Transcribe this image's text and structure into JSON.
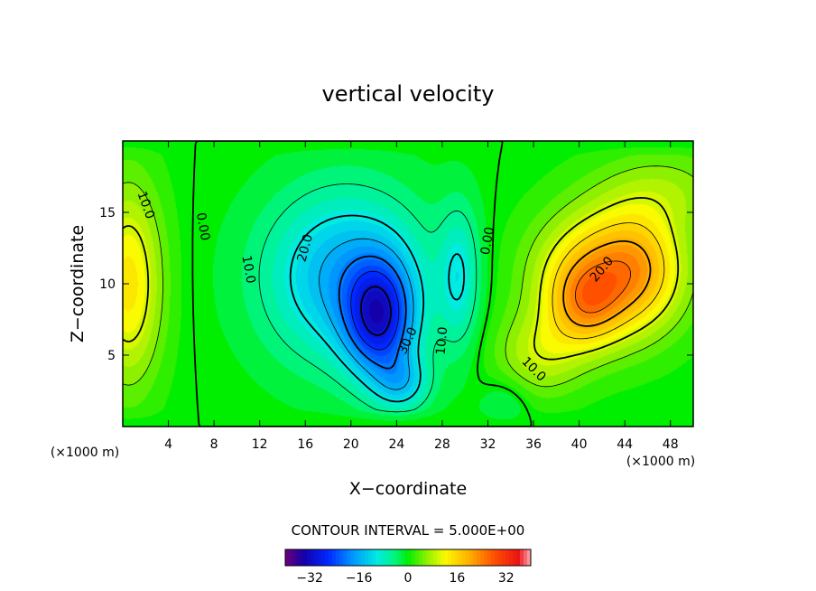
{
  "chart_data": {
    "type": "heatmap",
    "title": "vertical velocity",
    "xlabel": "X−coordinate",
    "ylabel": "Z−coordinate",
    "x_unit": "(×1000 m)",
    "z_unit": "(×1000 m)",
    "xlim": [
      0,
      50
    ],
    "ylim": [
      0,
      20
    ],
    "x_ticks": [
      4,
      8,
      12,
      16,
      20,
      24,
      28,
      32,
      36,
      40,
      44,
      48
    ],
    "y_ticks": [
      5,
      10,
      15
    ],
    "contour_interval_text": "CONTOUR INTERVAL = 5.000E+00",
    "contour_labels": [
      {
        "text": "10.0",
        "x": 2,
        "z": 15.5
      },
      {
        "text": "0.00",
        "x": 7,
        "z": 14
      },
      {
        "text": "10.0",
        "x": 11,
        "z": 11
      },
      {
        "text": "20.0",
        "x": 16,
        "z": 12.5
      },
      {
        "text": "30.0",
        "x": 25,
        "z": 6
      },
      {
        "text": "10.0",
        "x": 28,
        "z": 6
      },
      {
        "text": "0.00",
        "x": 32,
        "z": 13
      },
      {
        "text": "20.0",
        "x": 42,
        "z": 11
      },
      {
        "text": "10.0",
        "x": 36,
        "z": 4
      }
    ],
    "field_features": [
      {
        "name": "downdraft core",
        "x": 22.5,
        "z": 7.5,
        "w": -36
      },
      {
        "name": "updraft core",
        "x": 42.5,
        "z": 10,
        "w": 30
      },
      {
        "name": "left margin updraft",
        "x": 0.5,
        "z": 10,
        "w": 14
      },
      {
        "name": "secondary downdraft",
        "x": 29.5,
        "z": 10.5,
        "w": -9
      }
    ],
    "colorbar": {
      "ticks": [
        "−32",
        "−16",
        "0",
        "16",
        "32"
      ],
      "tick_values": [
        -32,
        -16,
        0,
        16,
        32
      ],
      "range": [
        -40,
        40
      ]
    }
  }
}
